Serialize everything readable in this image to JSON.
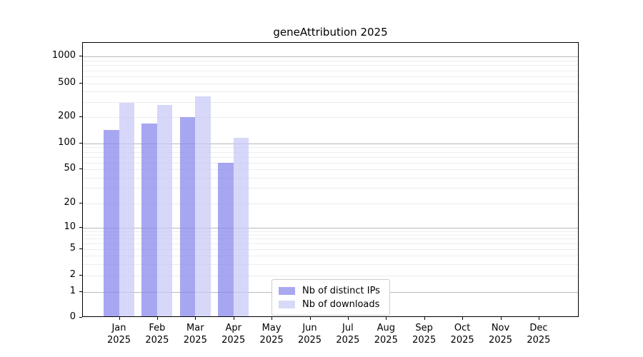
{
  "title": "geneAttribution 2025",
  "chart_data": {
    "type": "bar",
    "title": "geneAttribution 2025",
    "xlabel": "",
    "ylabel": "",
    "scale": "log",
    "grid": true,
    "legend_position": "inside-bottom-center",
    "yticks": [
      0,
      1,
      2,
      5,
      10,
      20,
      50,
      100,
      200,
      500,
      1000
    ],
    "ylim": [
      0,
      1400
    ],
    "categories": [
      {
        "month": "Jan",
        "year": "2025"
      },
      {
        "month": "Feb",
        "year": "2025"
      },
      {
        "month": "Mar",
        "year": "2025"
      },
      {
        "month": "Apr",
        "year": "2025"
      },
      {
        "month": "May",
        "year": "2025"
      },
      {
        "month": "Jun",
        "year": "2025"
      },
      {
        "month": "Jul",
        "year": "2025"
      },
      {
        "month": "Aug",
        "year": "2025"
      },
      {
        "month": "Sep",
        "year": "2025"
      },
      {
        "month": "Oct",
        "year": "2025"
      },
      {
        "month": "Nov",
        "year": "2025"
      },
      {
        "month": "Dec",
        "year": "2025"
      }
    ],
    "series": [
      {
        "name": "Nb of distinct IPs",
        "color": "#a9a9f1",
        "fill": "rgba(133,133,236,0.72)",
        "values": [
          140,
          165,
          198,
          58,
          null,
          null,
          null,
          null,
          null,
          null,
          null,
          null
        ]
      },
      {
        "name": "Nb of downloads",
        "color": "#d9d9f9",
        "fill": "rgba(200,200,247,0.72)",
        "values": [
          292,
          275,
          348,
          115,
          null,
          null,
          null,
          null,
          null,
          null,
          null,
          null
        ]
      }
    ],
    "grid_colors": {
      "major": "#b9b9b9",
      "minor": "#ededed"
    }
  }
}
